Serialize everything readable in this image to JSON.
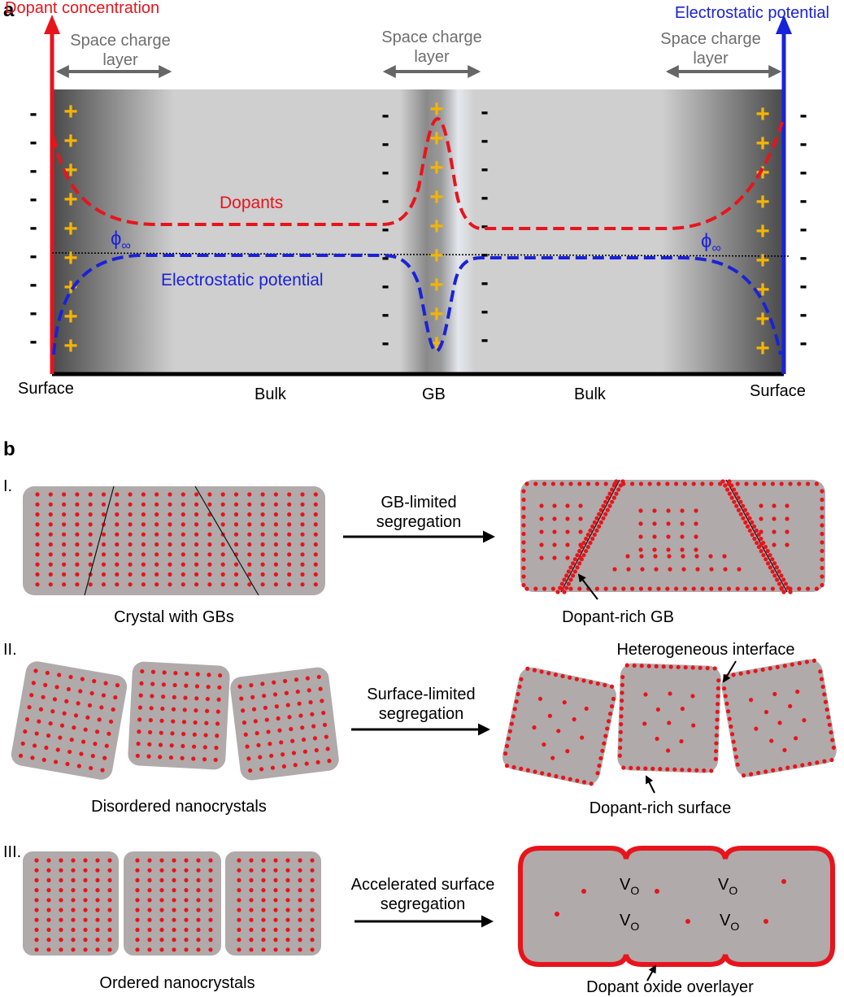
{
  "panel_a": {
    "label": "a",
    "axis_left": "Dopant concentration",
    "axis_right": "Electrostatic potential",
    "scl_left": [
      "Space charge",
      "layer"
    ],
    "scl_mid": [
      "Space charge",
      "layer"
    ],
    "scl_right": [
      "Space charge",
      "layer"
    ],
    "dopants_label": "Dopants",
    "potential_label": "Electrostatic potential",
    "phi": "ϕ",
    "phi_sub": "∞",
    "bottom": [
      "Surface",
      "Bulk",
      "GB",
      "Bulk",
      "Surface"
    ],
    "plus": "+",
    "minus": "-",
    "colors": {
      "dopant": "#e8141c",
      "potential": "#1a22d8",
      "plus": "#f5b400"
    }
  },
  "panel_b": {
    "label": "b",
    "rows": [
      {
        "num": "I.",
        "left_caption": "Crystal with GBs",
        "arrow_label": [
          "GB-limited",
          "segregation"
        ],
        "right_caption": "Dopant-rich GB"
      },
      {
        "num": "II.",
        "left_caption": "Disordered nanocrystals",
        "arrow_label": [
          "Surface-limited",
          "segregation"
        ],
        "right_caption": "Dopant-rich surface",
        "right_top_caption": "Heterogeneous interface"
      },
      {
        "num": "III.",
        "left_caption": "Ordered nanocrystals",
        "arrow_label": [
          "Accelerated surface",
          "segregation"
        ],
        "right_caption": "Dopant oxide overlayer",
        "vacancy": "V",
        "vacancy_sub": "O"
      }
    ]
  }
}
